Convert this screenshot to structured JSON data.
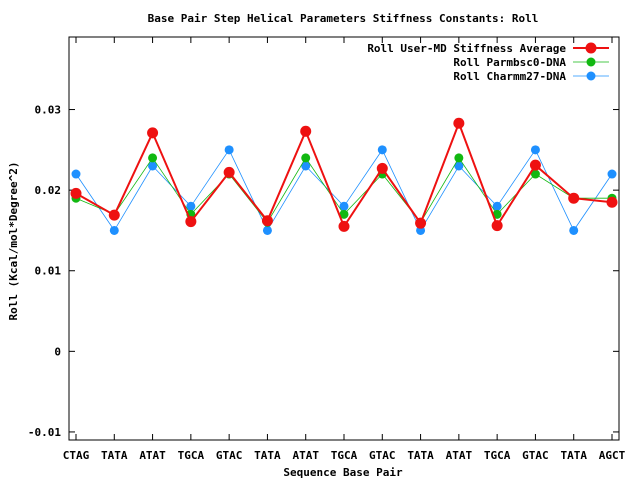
{
  "chart_data": {
    "type": "line",
    "title": "Base Pair Step Helical Parameters Stiffness Constants: Roll",
    "xlabel": "Sequence Base Pair",
    "ylabel": "Roll (Kcal/mol*Degree^2)",
    "categories": [
      "CTAG",
      "TATA",
      "ATAT",
      "TGCA",
      "GTAC",
      "TATA",
      "ATAT",
      "TGCA",
      "GTAC",
      "TATA",
      "ATAT",
      "TGCA",
      "GTAC",
      "TATA",
      "AGCT"
    ],
    "ylim": [
      -0.011,
      0.039
    ],
    "yticks": [
      -0.01,
      0,
      0.01,
      0.02,
      0.03
    ],
    "ytick_labels": [
      "-0.01",
      "0",
      "0.01",
      "0.02",
      "0.03"
    ],
    "grid": false,
    "legend_position": "top-right",
    "series": [
      {
        "name": "Roll Charmm27-DNA",
        "color": "#1e90ff",
        "values": [
          0.022,
          0.015,
          0.023,
          0.018,
          0.025,
          0.015,
          0.023,
          0.018,
          0.025,
          0.015,
          0.023,
          0.018,
          0.025,
          0.015,
          0.022
        ]
      },
      {
        "name": "Roll Parmbsc0-DNA",
        "color": "#11b811",
        "values": [
          0.019,
          0.017,
          0.024,
          0.017,
          0.022,
          0.016,
          0.024,
          0.017,
          0.022,
          0.016,
          0.024,
          0.017,
          0.022,
          0.019,
          0.019
        ]
      },
      {
        "name": "Roll User-MD Stiffness Average",
        "color": "#ee1111",
        "values": [
          0.0196,
          0.0169,
          0.0271,
          0.0161,
          0.0222,
          0.0162,
          0.0273,
          0.0155,
          0.0227,
          0.0159,
          0.0283,
          0.0156,
          0.0231,
          0.019,
          0.0185
        ]
      }
    ]
  }
}
